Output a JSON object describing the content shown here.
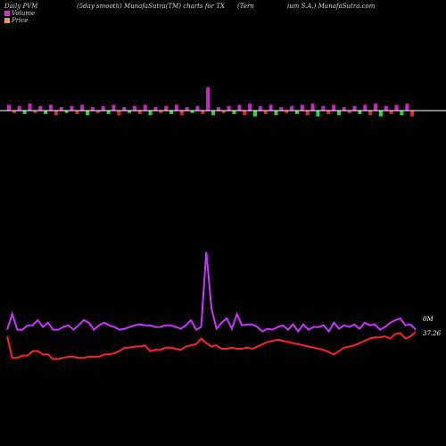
{
  "header": {
    "left": "Daily PVM",
    "center": "(5day smooth) MunafaSutra(TM) charts for TX",
    "right_a": "(Tern",
    "right_b": "ium S.A.) MunafaSutra.com"
  },
  "legend": [
    {
      "label": "Volume",
      "color": "#cc33cc"
    },
    {
      "label": "Price",
      "color": "#e0a050"
    }
  ],
  "colors": {
    "bar_up": "#cc22cc",
    "bar_down": "#22dd22",
    "bar_red": "#ee2222",
    "volume_line": "#cc33ff",
    "price_line": "#ff2222",
    "baseline": "#ffffff"
  },
  "chart_data": {
    "type": "line",
    "series": [
      {
        "name": "Volume",
        "values": [
          52,
          70,
          52,
          52,
          57,
          57,
          63,
          55,
          60,
          52,
          52,
          55,
          57,
          52,
          57,
          63,
          60,
          52,
          57,
          60,
          57,
          55,
          52,
          53,
          55,
          57,
          58,
          57,
          57,
          55,
          55,
          57,
          57,
          55,
          53,
          57,
          63,
          52,
          55,
          142,
          77,
          53,
          60,
          65,
          53,
          70,
          57,
          58,
          58,
          55,
          50,
          53,
          52,
          55,
          57,
          52,
          58,
          50,
          58,
          52,
          55,
          55,
          57,
          50,
          60,
          53,
          57,
          55,
          58,
          53,
          60,
          57,
          58,
          52,
          55,
          60,
          63,
          65,
          57,
          58,
          52
        ]
      },
      {
        "name": "Price",
        "values": [
          22,
          3,
          3,
          5,
          5,
          9,
          9,
          6,
          6,
          2,
          2,
          3,
          4,
          4,
          3,
          3,
          4,
          4,
          4,
          6,
          6,
          7,
          9,
          12,
          12,
          13,
          13,
          14,
          9,
          10,
          10,
          12,
          12,
          11,
          10,
          13,
          14,
          15,
          20,
          16,
          13,
          14,
          11,
          11,
          12,
          11,
          11,
          12,
          11,
          13,
          15,
          17,
          18,
          19,
          18,
          17,
          16,
          15,
          14,
          13,
          12,
          11,
          10,
          8,
          6,
          9,
          12,
          13,
          14,
          16,
          18,
          20,
          21,
          21,
          22,
          20,
          24,
          25,
          20,
          22,
          26
        ]
      }
    ],
    "end_labels": [
      "0M",
      "37.26"
    ],
    "bars": [
      5,
      -2,
      4,
      -3,
      6,
      -2,
      4,
      -3,
      5,
      -4,
      3,
      -2,
      4,
      -3,
      5,
      -4,
      3,
      -2,
      4,
      -3,
      5,
      -4,
      3,
      -2,
      4,
      -3,
      5,
      -4,
      3,
      -2,
      4,
      -3,
      5,
      -4,
      3,
      -2,
      4,
      -3,
      5,
      -4,
      3,
      -2,
      4,
      -3,
      5,
      -4,
      6,
      -5,
      4,
      -3,
      5,
      -4,
      3,
      -2,
      4,
      -3,
      5,
      -4,
      6,
      -5,
      4,
      -3,
      5,
      -4,
      3,
      -2,
      4,
      -3,
      5,
      -4,
      6,
      -5,
      4,
      -3,
      5,
      -4,
      6,
      -5
    ]
  }
}
